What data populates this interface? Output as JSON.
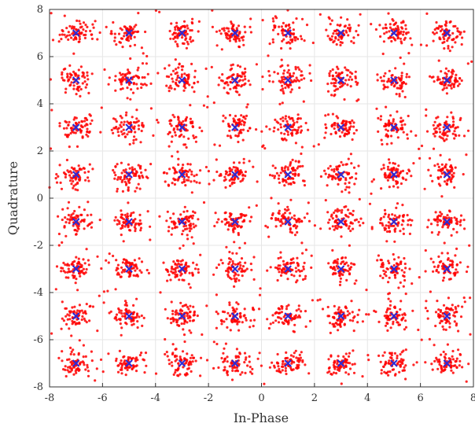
{
  "chart_data": {
    "type": "scatter",
    "xlabel": "In-Phase",
    "ylabel": "Quadrature",
    "xlim": [
      -8,
      8
    ],
    "ylim": [
      -8,
      8
    ],
    "xticks": [
      -8,
      -6,
      -4,
      -2,
      0,
      2,
      4,
      6,
      8
    ],
    "yticks": [
      -8,
      -6,
      -4,
      -2,
      0,
      2,
      4,
      6,
      8
    ],
    "grid": true,
    "constellation_levels": [
      -7,
      -5,
      -3,
      -1,
      1,
      3,
      5,
      7
    ],
    "series": [
      {
        "role": "received",
        "color": "#ff0000",
        "points_per_symbol": 70,
        "spread": 0.32,
        "outlier_fraction": 0.12,
        "outlier_spread": 0.9
      },
      {
        "role": "reference",
        "color": "#2b2bd6"
      }
    ]
  }
}
